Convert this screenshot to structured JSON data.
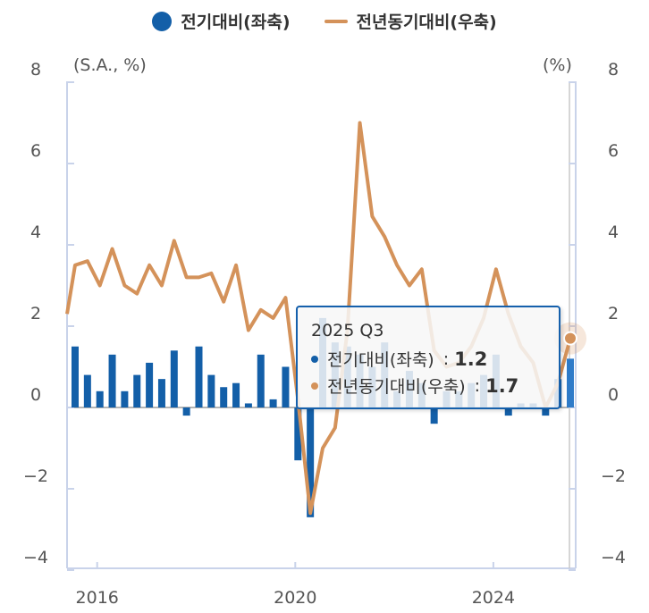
{
  "legend": {
    "qoq_label": "전기대비(좌축)",
    "yoy_label": "전년동기대비(우축)"
  },
  "left_unit": "(S.A., %)",
  "right_unit": "(%)",
  "tooltip": {
    "period": "2025 Q3",
    "qoq_label": "전기대비(좌축)",
    "qoq_value": "1.2",
    "yoy_label": "전년동기대비(우축)",
    "yoy_value": "1.7",
    "separator": ":"
  },
  "colors": {
    "bar": "#135fa8",
    "bar_highlight": "#2e7bc8",
    "line": "#d4925a",
    "tooltip_border": "#1560ac"
  },
  "chart_data": {
    "type": "bar+line",
    "x_start": "2015 Q3",
    "x_end": "2025 Q3",
    "x_tick_labels": [
      "2016",
      "2020",
      "2024"
    ],
    "left_axis": {
      "label": "(S.A., %)",
      "ylim": [
        -4,
        8
      ],
      "ticks": [
        8,
        6,
        4,
        2,
        0,
        -2,
        -4
      ],
      "tick_labels": [
        "8",
        "6",
        "4",
        "2",
        "0",
        "−2",
        "−4"
      ]
    },
    "right_axis": {
      "label": "(%)",
      "ylim": [
        -4,
        8
      ],
      "ticks": [
        8,
        6,
        4,
        2,
        0,
        -2,
        -4
      ],
      "tick_labels": [
        "8",
        "6",
        "4",
        "2",
        "0",
        "−2",
        "−4"
      ]
    },
    "grid": false,
    "legend_position": "top",
    "series": [
      {
        "name": "전기대비(좌축)",
        "type": "bar",
        "axis": "left",
        "values": [
          1.5,
          0.8,
          0.4,
          1.3,
          0.4,
          0.8,
          1.1,
          0.7,
          1.4,
          -0.2,
          1.5,
          0.8,
          0.5,
          0.6,
          0.1,
          1.3,
          0.2,
          1.0,
          -1.3,
          -2.7,
          2.2,
          1.6,
          1.5,
          1.3,
          1.0,
          1.6,
          0.4,
          0.9,
          0.6,
          -0.4,
          0.4,
          0.4,
          0.6,
          0.8,
          1.3,
          -0.2,
          0.1,
          0.1,
          -0.2,
          0.7,
          1.2
        ]
      },
      {
        "name": "전년동기대비(우축)",
        "type": "line",
        "axis": "right",
        "values": [
          3.5,
          3.6,
          3.0,
          3.9,
          3.0,
          2.8,
          3.5,
          3.0,
          4.1,
          3.2,
          3.2,
          3.3,
          2.6,
          3.5,
          1.9,
          2.4,
          2.2,
          2.7,
          0.2,
          -2.6,
          -1.0,
          -0.5,
          1.9,
          7.0,
          4.7,
          4.2,
          3.5,
          3.0,
          3.4,
          1.4,
          1.0,
          1.1,
          1.5,
          2.2,
          3.4,
          2.3,
          1.5,
          1.1,
          0.0,
          0.6,
          1.7
        ]
      }
    ],
    "highlighted_point": "2025 Q3"
  }
}
